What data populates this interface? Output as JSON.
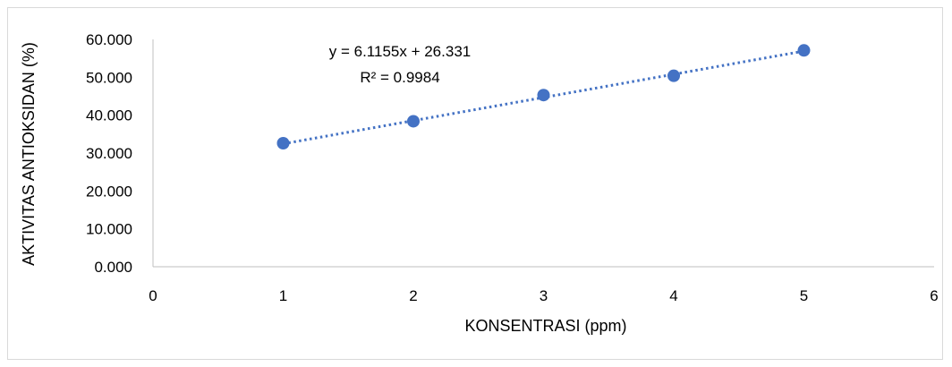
{
  "chart_data": {
    "type": "scatter",
    "xlabel": "KONSENTRASI (ppm)",
    "ylabel": "AKTIVITAS ANTIOKSIDAN (%)",
    "xlim": [
      0,
      6
    ],
    "ylim": [
      0,
      60
    ],
    "x_ticks": [
      "0",
      "1",
      "2",
      "3",
      "4",
      "5",
      "6"
    ],
    "y_ticks": [
      "0.000",
      "10.000",
      "20.000",
      "30.000",
      "40.000",
      "50.000",
      "60.000"
    ],
    "series": [
      {
        "x": [
          1,
          2,
          3,
          4,
          5
        ],
        "y": [
          32.6,
          38.4,
          45.3,
          50.4,
          57.1
        ],
        "color": "#4472c4"
      }
    ],
    "trendline": {
      "type": "linear",
      "slope": 6.1155,
      "intercept": 26.331,
      "style": "dotted",
      "color": "#4472c4"
    },
    "annotations": {
      "equation": "y = 6.1155x + 26.331",
      "r_squared": "R² = 0.9984"
    },
    "grid": false,
    "legend": "none"
  }
}
